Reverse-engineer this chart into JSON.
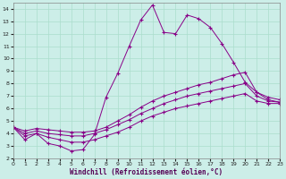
{
  "background_color": "#cceee8",
  "grid_color": "#aaddcc",
  "line_color": "#880088",
  "xlim": [
    0,
    23
  ],
  "ylim": [
    2,
    14.5
  ],
  "yticks": [
    2,
    3,
    4,
    5,
    6,
    7,
    8,
    9,
    10,
    11,
    12,
    13,
    14
  ],
  "xticks": [
    0,
    1,
    2,
    3,
    4,
    5,
    6,
    7,
    8,
    9,
    10,
    11,
    12,
    13,
    14,
    15,
    16,
    17,
    18,
    19,
    20,
    21,
    22,
    23
  ],
  "line1_x": [
    0,
    1,
    2,
    3,
    4,
    5,
    6,
    7,
    8,
    9,
    10,
    11,
    12,
    13,
    14,
    15,
    16,
    17,
    18,
    19,
    20,
    21,
    22,
    23
  ],
  "line1_y": [
    4.5,
    3.5,
    4.0,
    3.2,
    3.0,
    2.6,
    2.7,
    3.9,
    6.9,
    8.8,
    11.0,
    13.1,
    14.3,
    12.1,
    12.0,
    13.5,
    13.2,
    12.5,
    11.2,
    9.7,
    8.1,
    7.3,
    6.7,
    6.5
  ],
  "line2_x": [
    0,
    1,
    2,
    3,
    4,
    5,
    6,
    7,
    8,
    9,
    10,
    11,
    12,
    13,
    14,
    15,
    16,
    17,
    18,
    19,
    20,
    21,
    22,
    23
  ],
  "line2_y": [
    4.5,
    4.2,
    4.4,
    4.3,
    4.2,
    4.1,
    4.1,
    4.2,
    4.5,
    5.0,
    5.5,
    6.1,
    6.6,
    7.0,
    7.3,
    7.6,
    7.9,
    8.1,
    8.4,
    8.7,
    8.9,
    7.3,
    6.9,
    6.7
  ],
  "line3_x": [
    0,
    1,
    2,
    3,
    4,
    5,
    6,
    7,
    8,
    9,
    10,
    11,
    12,
    13,
    14,
    15,
    16,
    17,
    18,
    19,
    20,
    21,
    22,
    23
  ],
  "line3_y": [
    4.5,
    4.0,
    4.2,
    4.0,
    3.9,
    3.8,
    3.8,
    4.0,
    4.3,
    4.7,
    5.1,
    5.6,
    6.0,
    6.4,
    6.7,
    7.0,
    7.2,
    7.4,
    7.6,
    7.8,
    8.0,
    7.0,
    6.6,
    6.5
  ],
  "line4_x": [
    0,
    1,
    2,
    3,
    4,
    5,
    6,
    7,
    8,
    9,
    10,
    11,
    12,
    13,
    14,
    15,
    16,
    17,
    18,
    19,
    20,
    21,
    22,
    23
  ],
  "line4_y": [
    4.5,
    3.8,
    4.0,
    3.7,
    3.5,
    3.3,
    3.3,
    3.5,
    3.8,
    4.1,
    4.5,
    5.0,
    5.4,
    5.7,
    6.0,
    6.2,
    6.4,
    6.6,
    6.8,
    7.0,
    7.2,
    6.6,
    6.4,
    6.4
  ],
  "xlabel": "Windchill (Refroidissement éolien,°C)"
}
